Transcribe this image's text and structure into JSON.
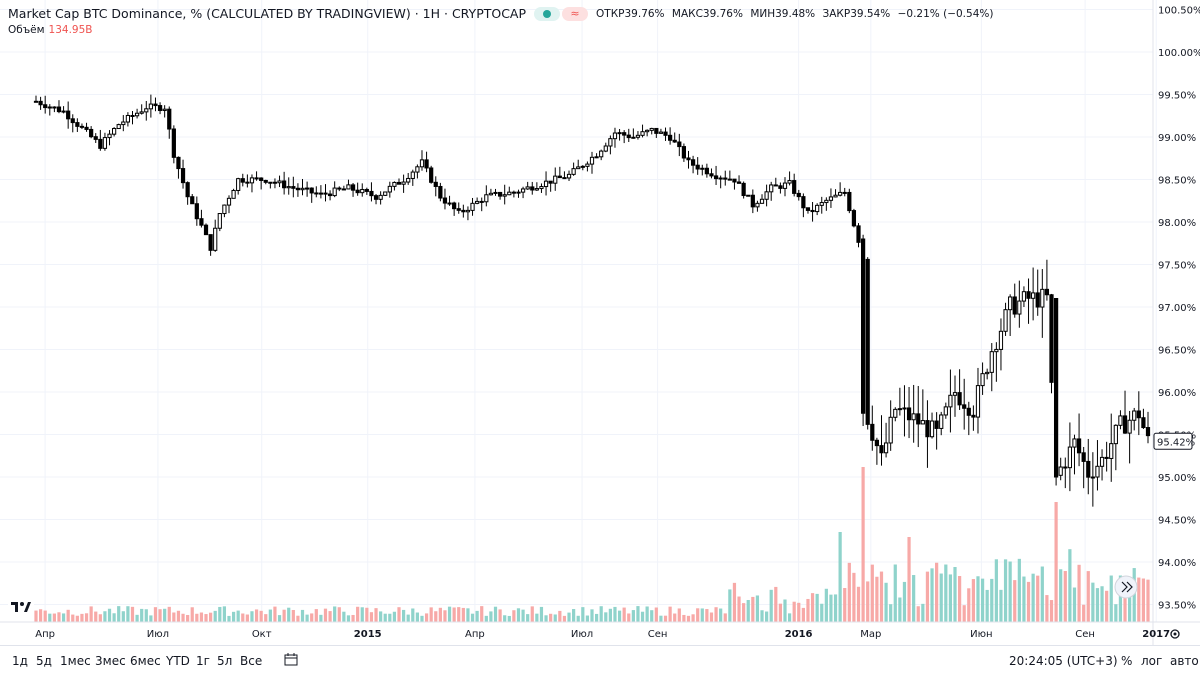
{
  "header": {
    "title": "Market Cap BTC Dominance, % (CALCULATED BY TRADINGVIEW) · 1H · CRYPTOCAP",
    "ohlc": [
      {
        "k": "ОТКР",
        "v": "39.76%"
      },
      {
        "k": "МАКС",
        "v": "39.76%"
      },
      {
        "k": "МИН",
        "v": "39.48%"
      },
      {
        "k": "ЗАКР",
        "v": "39.54%"
      }
    ],
    "change": "−0.21% (−0.54%)",
    "wave_icon": "≈"
  },
  "volume": {
    "label": "Объём",
    "value": "134.95B"
  },
  "colors": {
    "up": "#26a69a",
    "down": "#ef5350",
    "up_vol": "#8fd3cb",
    "down_vol": "#f7a9a7",
    "grid": "#f0f3fa",
    "text": "#131722"
  },
  "chart_data": {
    "type": "candlestick",
    "y_axis": {
      "ticks": [
        "100.50%",
        "100.00%",
        "99.50%",
        "99.00%",
        "98.50%",
        "98.00%",
        "97.50%",
        "97.00%",
        "96.50%",
        "96.00%",
        "95.50%",
        "95.00%",
        "94.50%",
        "94.00%",
        "93.50%"
      ],
      "range": [
        93.0,
        100.6
      ],
      "last_price": "95.42%"
    },
    "x_axis": {
      "ticks": [
        {
          "label": "Апр",
          "pos": 0.04,
          "bold": false
        },
        {
          "label": "Июл",
          "pos": 0.14,
          "bold": false
        },
        {
          "label": "Окт",
          "pos": 0.232,
          "bold": false
        },
        {
          "label": "2015",
          "pos": 0.326,
          "bold": true
        },
        {
          "label": "Апр",
          "pos": 0.421,
          "bold": false
        },
        {
          "label": "Июл",
          "pos": 0.516,
          "bold": false
        },
        {
          "label": "Сен",
          "pos": 0.583,
          "bold": false
        },
        {
          "label": "2016",
          "pos": 0.708,
          "bold": true
        },
        {
          "label": "Мар",
          "pos": 0.772,
          "bold": false
        },
        {
          "label": "Июн",
          "pos": 0.87,
          "bold": false
        },
        {
          "label": "Сен",
          "pos": 0.962,
          "bold": false
        },
        {
          "label": "2017",
          "pos": 1.025,
          "bold": true
        }
      ]
    }
  },
  "toolbar": {
    "ranges": [
      "1д",
      "5д",
      "1мес",
      "3мес",
      "6мес",
      "YTD",
      "1г",
      "5л",
      "Все"
    ],
    "time": "20:24:05 (UTC+3)",
    "percent": "%",
    "log": "лог",
    "auto": "авто"
  }
}
